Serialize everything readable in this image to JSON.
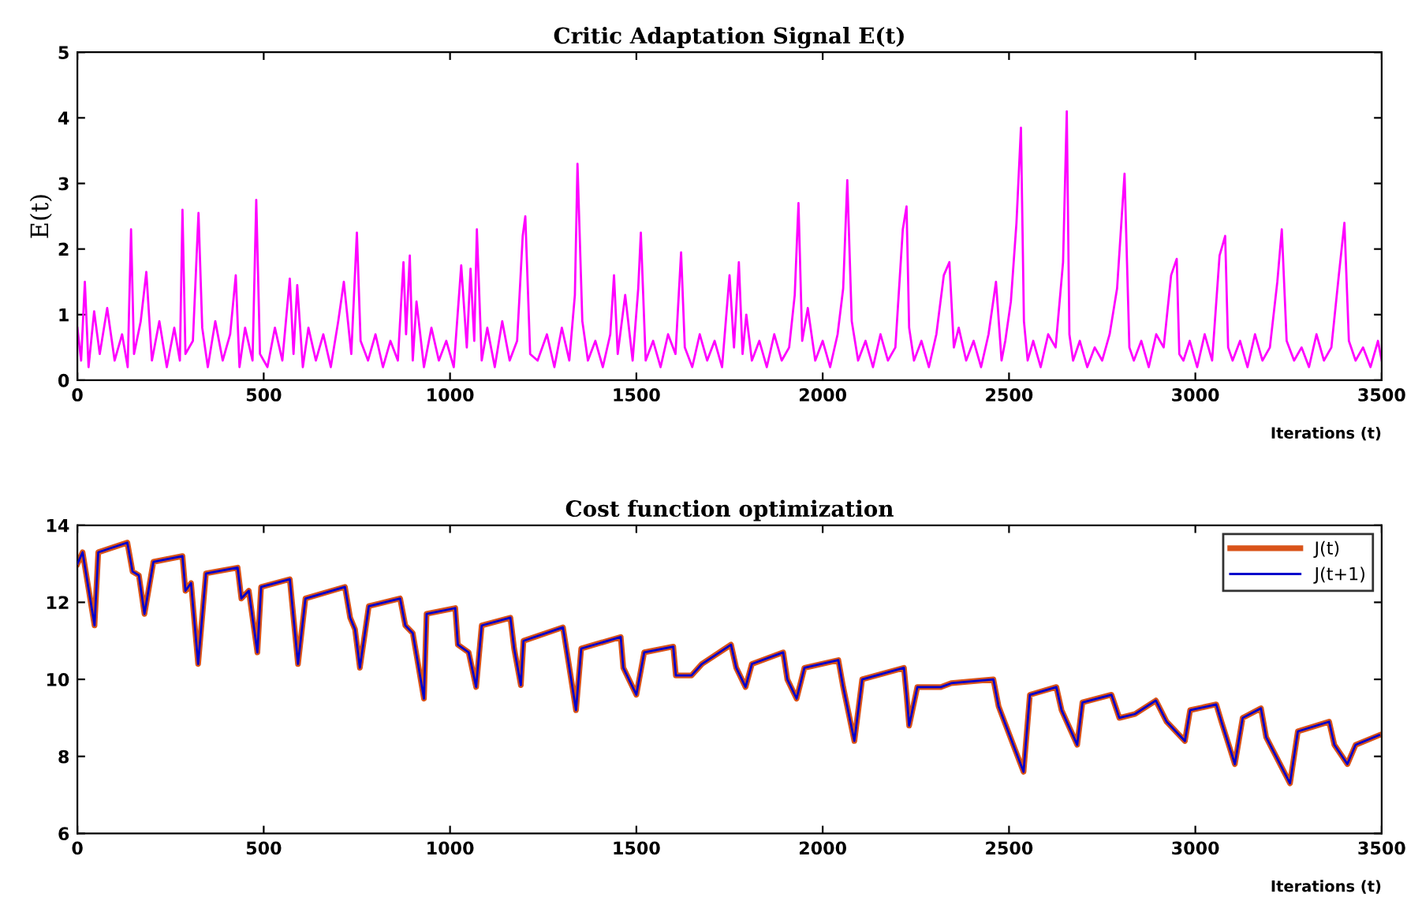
{
  "chart_data": [
    {
      "type": "line",
      "title": "Critic Adaptation Signal E(t)",
      "xlabel": "Iterations (t)",
      "ylabel": "E(t)",
      "xlim": [
        0,
        3500
      ],
      "ylim": [
        0,
        5
      ],
      "xticks": [
        0,
        500,
        1000,
        1500,
        2000,
        2500,
        3000,
        3500
      ],
      "yticks": [
        0,
        1,
        2,
        3,
        4,
        5
      ],
      "grid": false,
      "legend": false,
      "line_style": "solid",
      "series": [
        {
          "color": "#ff00ff",
          "x": [
            0,
            10,
            20,
            30,
            45,
            60,
            80,
            100,
            120,
            135,
            144,
            152,
            170,
            185,
            200,
            220,
            240,
            260,
            275,
            282,
            290,
            310,
            325,
            335,
            350,
            370,
            390,
            410,
            425,
            435,
            450,
            470,
            480,
            490,
            510,
            530,
            550,
            570,
            580,
            590,
            605,
            620,
            640,
            660,
            680,
            700,
            715,
            735,
            750,
            760,
            780,
            800,
            820,
            840,
            860,
            875,
            882,
            892,
            900,
            910,
            930,
            950,
            970,
            990,
            1010,
            1030,
            1045,
            1055,
            1065,
            1072,
            1085,
            1100,
            1120,
            1140,
            1160,
            1180,
            1195,
            1202,
            1215,
            1235,
            1260,
            1280,
            1300,
            1320,
            1335,
            1342,
            1355,
            1370,
            1390,
            1410,
            1430,
            1440,
            1450,
            1470,
            1490,
            1505,
            1512,
            1525,
            1545,
            1565,
            1585,
            1605,
            1620,
            1630,
            1650,
            1670,
            1690,
            1710,
            1730,
            1750,
            1762,
            1775,
            1785,
            1795,
            1810,
            1830,
            1850,
            1870,
            1890,
            1910,
            1925,
            1935,
            1945,
            1960,
            1980,
            2000,
            2020,
            2040,
            2055,
            2066,
            2078,
            2095,
            2115,
            2135,
            2155,
            2175,
            2195,
            2215,
            2225,
            2232,
            2245,
            2265,
            2285,
            2305,
            2325,
            2340,
            2352,
            2365,
            2385,
            2405,
            2425,
            2445,
            2465,
            2480,
            2490,
            2505,
            2520,
            2532,
            2540,
            2550,
            2565,
            2585,
            2605,
            2625,
            2645,
            2655,
            2662,
            2672,
            2690,
            2710,
            2730,
            2750,
            2770,
            2790,
            2810,
            2823,
            2835,
            2855,
            2875,
            2895,
            2915,
            2935,
            2950,
            2957,
            2968,
            2985,
            3005,
            3025,
            3045,
            3065,
            3080,
            3088,
            3100,
            3120,
            3140,
            3160,
            3180,
            3200,
            3220,
            3232,
            3245,
            3265,
            3285,
            3305,
            3325,
            3345,
            3365,
            3385,
            3400,
            3412,
            3430,
            3450,
            3470,
            3490,
            3500
          ],
          "values": [
            0.8,
            0.3,
            1.5,
            0.2,
            1.05,
            0.4,
            1.1,
            0.3,
            0.7,
            0.2,
            2.3,
            0.4,
            0.9,
            1.65,
            0.3,
            0.9,
            0.2,
            0.8,
            0.3,
            2.6,
            0.4,
            0.6,
            2.55,
            0.8,
            0.2,
            0.9,
            0.3,
            0.7,
            1.6,
            0.2,
            0.8,
            0.3,
            2.75,
            0.4,
            0.2,
            0.8,
            0.3,
            1.55,
            0.4,
            1.45,
            0.2,
            0.8,
            0.3,
            0.7,
            0.2,
            0.9,
            1.5,
            0.4,
            2.25,
            0.6,
            0.3,
            0.7,
            0.2,
            0.6,
            0.3,
            1.8,
            0.7,
            1.9,
            0.3,
            1.2,
            0.2,
            0.8,
            0.3,
            0.6,
            0.2,
            1.75,
            0.5,
            1.7,
            0.6,
            2.3,
            0.3,
            0.8,
            0.2,
            0.9,
            0.3,
            0.6,
            2.2,
            2.5,
            0.4,
            0.3,
            0.7,
            0.2,
            0.8,
            0.3,
            1.3,
            3.3,
            0.9,
            0.3,
            0.6,
            0.2,
            0.7,
            1.6,
            0.4,
            1.3,
            0.3,
            1.4,
            2.25,
            0.3,
            0.6,
            0.2,
            0.7,
            0.4,
            1.95,
            0.5,
            0.2,
            0.7,
            0.3,
            0.6,
            0.2,
            1.6,
            0.5,
            1.8,
            0.4,
            1.0,
            0.3,
            0.6,
            0.2,
            0.7,
            0.3,
            0.5,
            1.3,
            2.7,
            0.6,
            1.1,
            0.3,
            0.6,
            0.2,
            0.7,
            1.4,
            3.05,
            0.9,
            0.3,
            0.6,
            0.2,
            0.7,
            0.3,
            0.5,
            2.3,
            2.65,
            0.8,
            0.3,
            0.6,
            0.2,
            0.7,
            1.6,
            1.8,
            0.5,
            0.8,
            0.3,
            0.6,
            0.2,
            0.7,
            1.5,
            0.3,
            0.6,
            1.2,
            2.4,
            3.85,
            0.9,
            0.3,
            0.6,
            0.2,
            0.7,
            0.5,
            1.8,
            4.1,
            0.7,
            0.3,
            0.6,
            0.2,
            0.5,
            0.3,
            0.7,
            1.4,
            3.15,
            0.5,
            0.3,
            0.6,
            0.2,
            0.7,
            0.5,
            1.6,
            1.85,
            0.4,
            0.3,
            0.6,
            0.2,
            0.7,
            0.3,
            1.9,
            2.2,
            0.5,
            0.3,
            0.6,
            0.2,
            0.7,
            0.3,
            0.5,
            1.5,
            2.3,
            0.6,
            0.3,
            0.5,
            0.2,
            0.7,
            0.3,
            0.5,
            1.6,
            2.4,
            0.6,
            0.3,
            0.5,
            0.2,
            0.6,
            0.3
          ]
        }
      ]
    },
    {
      "type": "line",
      "title": "Cost function optimization",
      "xlabel": "Iterations (t)",
      "xlim": [
        0,
        3500
      ],
      "ylim": [
        6,
        14
      ],
      "xticks": [
        0,
        500,
        1000,
        1500,
        2000,
        2500,
        3000,
        3500
      ],
      "yticks": [
        6,
        8,
        10,
        12,
        14
      ],
      "grid": false,
      "legend": "top right",
      "line_style": "solid",
      "x": [
        0,
        14,
        46,
        56,
        134,
        148,
        165,
        180,
        204,
        282,
        290,
        305,
        324,
        345,
        430,
        440,
        460,
        483,
        493,
        570,
        578,
        592,
        612,
        718,
        732,
        745,
        758,
        782,
        866,
        880,
        900,
        930,
        937,
        1014,
        1021,
        1050,
        1070,
        1085,
        1162,
        1172,
        1190,
        1197,
        1303,
        1317,
        1338,
        1352,
        1458,
        1465,
        1500,
        1521,
        1599,
        1606,
        1648,
        1676,
        1754,
        1768,
        1793,
        1810,
        1894,
        1905,
        1930,
        1951,
        2042,
        2055,
        2085,
        2106,
        2218,
        2225,
        2232,
        2254,
        2317,
        2345,
        2458,
        2472,
        2539,
        2556,
        2627,
        2641,
        2683,
        2697,
        2775,
        2796,
        2838,
        2894,
        2923,
        2972,
        2986,
        3056,
        3070,
        3106,
        3127,
        3176,
        3190,
        3254,
        3275,
        3359,
        3373,
        3408,
        3430,
        3493
      ],
      "series": [
        {
          "name": "J(t)",
          "color": "#d95319",
          "values": [
            13.0,
            13.3,
            11.4,
            13.3,
            13.55,
            12.8,
            12.7,
            11.7,
            13.05,
            13.2,
            12.3,
            12.5,
            10.4,
            12.75,
            12.9,
            12.1,
            12.3,
            10.7,
            12.4,
            12.6,
            11.8,
            10.4,
            12.1,
            12.4,
            11.6,
            11.3,
            10.3,
            11.9,
            12.1,
            11.4,
            11.2,
            9.5,
            11.7,
            11.85,
            10.9,
            10.7,
            9.8,
            11.4,
            11.6,
            10.8,
            9.85,
            11.0,
            11.35,
            10.5,
            9.2,
            10.8,
            11.1,
            10.3,
            9.6,
            10.7,
            10.85,
            10.1,
            10.1,
            10.4,
            10.9,
            10.3,
            9.8,
            10.4,
            10.7,
            10.0,
            9.5,
            10.3,
            10.5,
            9.8,
            8.4,
            10.0,
            10.3,
            9.6,
            8.8,
            9.8,
            9.8,
            9.9,
            10.0,
            9.3,
            7.6,
            9.6,
            9.8,
            9.2,
            8.3,
            9.4,
            9.6,
            9.0,
            9.1,
            9.45,
            8.9,
            8.4,
            9.2,
            9.35,
            8.9,
            7.8,
            9.0,
            9.25,
            8.5,
            7.3,
            8.65,
            8.9,
            8.3,
            7.8,
            8.3,
            8.55
          ]
        },
        {
          "name": "J(t+1)",
          "color": "#0000cc",
          "values": [
            13.0,
            13.3,
            11.4,
            13.3,
            13.55,
            12.8,
            12.7,
            11.7,
            13.05,
            13.2,
            12.3,
            12.5,
            10.4,
            12.75,
            12.9,
            12.1,
            12.3,
            10.7,
            12.4,
            12.6,
            11.8,
            10.4,
            12.1,
            12.4,
            11.6,
            11.3,
            10.3,
            11.9,
            12.1,
            11.4,
            11.2,
            9.5,
            11.7,
            11.85,
            10.9,
            10.7,
            9.8,
            11.4,
            11.6,
            10.8,
            9.85,
            11.0,
            11.35,
            10.5,
            9.2,
            10.8,
            11.1,
            10.3,
            9.6,
            10.7,
            10.85,
            10.1,
            10.1,
            10.4,
            10.9,
            10.3,
            9.8,
            10.4,
            10.7,
            10.0,
            9.5,
            10.3,
            10.5,
            9.8,
            8.4,
            10.0,
            10.3,
            9.6,
            8.8,
            9.8,
            9.8,
            9.9,
            10.0,
            9.3,
            7.6,
            9.6,
            9.8,
            9.2,
            8.3,
            9.4,
            9.6,
            9.0,
            9.1,
            9.45,
            8.9,
            8.4,
            9.2,
            9.35,
            8.9,
            7.8,
            9.0,
            9.25,
            8.5,
            7.3,
            8.65,
            8.9,
            8.3,
            7.8,
            8.3,
            8.55
          ]
        }
      ]
    }
  ]
}
